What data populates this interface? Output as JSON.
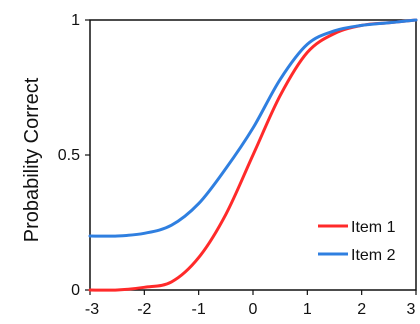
{
  "chart_data": {
    "type": "line",
    "xlim": [
      -3,
      3
    ],
    "ylim": [
      0,
      1
    ],
    "x_ticks": [
      "-3",
      "-2",
      "-1",
      "0",
      "1",
      "2",
      "3"
    ],
    "y_ticks": [
      "0",
      "0.5",
      "1"
    ],
    "xlabel": "",
    "ylabel": "Probability Correct",
    "grid": false,
    "legend_position": "bottom-right",
    "series": [
      {
        "name": "Item 1",
        "color": "#ff2a2a",
        "points": [
          [
            -3,
            0.0
          ],
          [
            -2.5,
            0.0
          ],
          [
            -2,
            0.01
          ],
          [
            -1.5,
            0.03
          ],
          [
            -1,
            0.12
          ],
          [
            -0.5,
            0.28
          ],
          [
            0,
            0.5
          ],
          [
            0.5,
            0.72
          ],
          [
            1,
            0.88
          ],
          [
            1.5,
            0.95
          ],
          [
            2,
            0.98
          ],
          [
            2.5,
            0.99
          ],
          [
            3,
            1.0
          ]
        ]
      },
      {
        "name": "Item 2",
        "color": "#2f7fe0",
        "points": [
          [
            -3,
            0.2
          ],
          [
            -2.5,
            0.2
          ],
          [
            -2,
            0.21
          ],
          [
            -1.5,
            0.24
          ],
          [
            -1,
            0.32
          ],
          [
            -0.5,
            0.45
          ],
          [
            0,
            0.6
          ],
          [
            0.5,
            0.78
          ],
          [
            1,
            0.91
          ],
          [
            1.5,
            0.96
          ],
          [
            2,
            0.98
          ],
          [
            2.5,
            0.99
          ],
          [
            3,
            1.0
          ]
        ]
      }
    ]
  }
}
